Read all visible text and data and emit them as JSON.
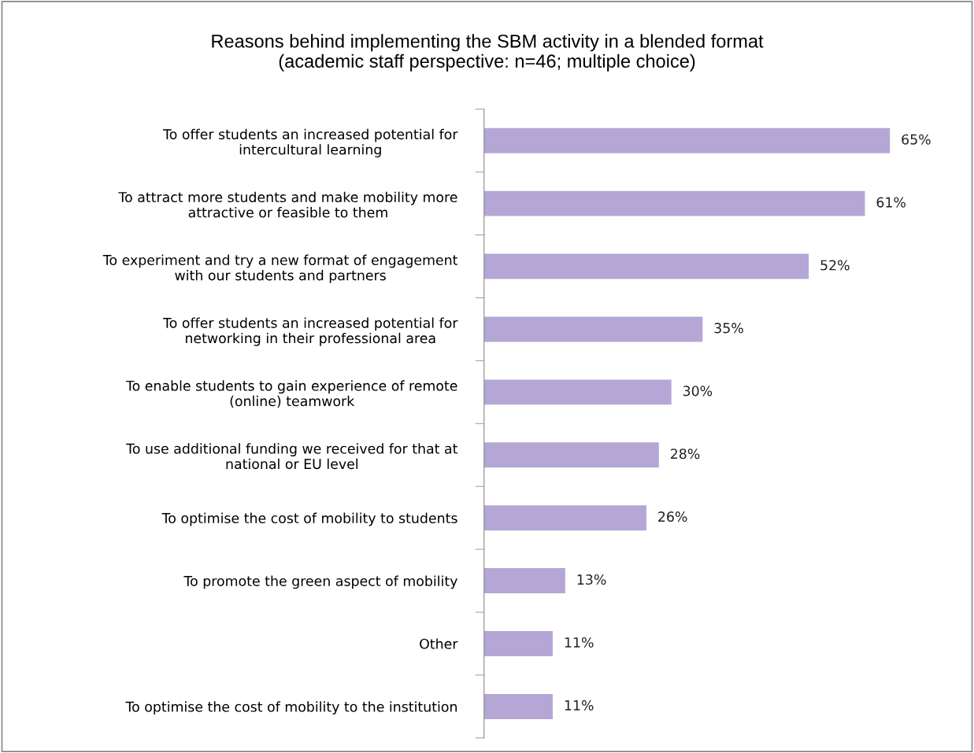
{
  "chart_data": {
    "type": "bar",
    "orientation": "horizontal",
    "title": "Reasons behind implementing the SBM activity in a blended format\n(academic staff perspective: n=46; multiple choice)",
    "categories": [
      "To offer students an increased potential for\nintercultural learning",
      "To attract more students and make mobility more\nattractive or feasible to them",
      "To experiment and try a new format of engagement\nwith our students and partners",
      "To offer students an increased potential for\nnetworking in their professional area",
      "To enable students to gain experience of remote\n(online) teamwork",
      "To use additional funding we received for that at\nnational or EU level",
      "To optimise the cost of mobility to students",
      "To promote the green aspect of mobility",
      "Other",
      "To optimise the cost of mobility to the institution"
    ],
    "values": [
      65,
      61,
      52,
      35,
      30,
      28,
      26,
      13,
      11,
      11
    ],
    "value_labels": [
      "65%",
      "61%",
      "52%",
      "35%",
      "30%",
      "28%",
      "26%",
      "13%",
      "11%",
      "11%"
    ],
    "color": "#b4a7d6",
    "tick_labels": "y"
  }
}
